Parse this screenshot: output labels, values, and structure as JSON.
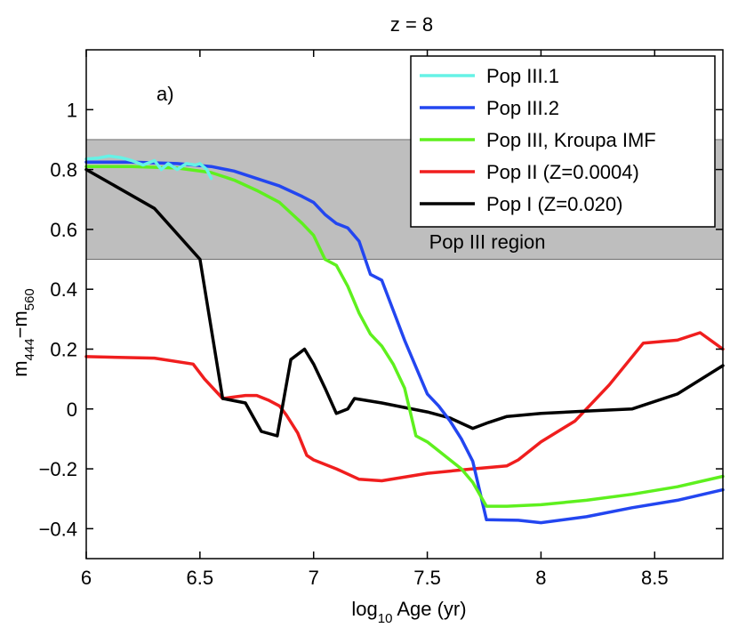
{
  "chart_data": {
    "type": "line",
    "title": "z = 8",
    "xlabel": "log",
    "xlabel_sub": "10",
    "xlabel_rest": " Age (yr)",
    "ylabel": "m",
    "ylabel_sub1": "444",
    "ylabel_mid": "−m",
    "ylabel_sub2": "560",
    "xlim": [
      6,
      8.8
    ],
    "ylim": [
      -0.5,
      1.2
    ],
    "xticks": [
      6,
      6.5,
      7,
      7.5,
      8,
      8.5
    ],
    "xtick_labels": [
      "6",
      "6.5",
      "7",
      "7.5",
      "8",
      "8.5"
    ],
    "yticks": [
      -0.4,
      -0.2,
      0,
      0.2,
      0.4,
      0.6,
      0.8,
      1
    ],
    "ytick_labels": [
      "−0.4",
      "−0.2",
      "0",
      "0.2",
      "0.4",
      "0.6",
      "0.8",
      "1"
    ],
    "panel_label": "a)",
    "band": {
      "label": "Pop III region",
      "y0": 0.5,
      "y1": 0.9,
      "color": "#bebebe"
    },
    "legend_position": "top-right",
    "series": [
      {
        "name": "Pop III.1",
        "color": "#66f2e6",
        "x": [
          6.0,
          6.05,
          6.1,
          6.15,
          6.2,
          6.25,
          6.3,
          6.33,
          6.36,
          6.4,
          6.44,
          6.48,
          6.5,
          6.53,
          6.55
        ],
        "y": [
          0.835,
          0.838,
          0.845,
          0.84,
          0.83,
          0.815,
          0.83,
          0.8,
          0.82,
          0.8,
          0.82,
          0.815,
          0.82,
          0.8,
          0.77
        ]
      },
      {
        "name": "Pop III.2",
        "color": "#2346f0",
        "x": [
          6.0,
          6.2,
          6.4,
          6.55,
          6.65,
          6.75,
          6.85,
          6.95,
          7.0,
          7.05,
          7.1,
          7.15,
          7.2,
          7.25,
          7.3,
          7.35,
          7.4,
          7.45,
          7.5,
          7.55,
          7.6,
          7.65,
          7.7,
          7.76,
          7.9,
          8.0,
          8.2,
          8.4,
          8.6,
          8.8
        ],
        "y": [
          0.825,
          0.825,
          0.82,
          0.81,
          0.795,
          0.77,
          0.745,
          0.71,
          0.69,
          0.65,
          0.62,
          0.605,
          0.56,
          0.45,
          0.43,
          0.33,
          0.23,
          0.14,
          0.05,
          0.01,
          -0.04,
          -0.1,
          -0.175,
          -0.37,
          -0.372,
          -0.38,
          -0.36,
          -0.33,
          -0.305,
          -0.27
        ]
      },
      {
        "name": "Pop III, Kroupa IMF",
        "color": "#5ef01e",
        "x": [
          6.0,
          6.2,
          6.4,
          6.55,
          6.65,
          6.75,
          6.85,
          6.9,
          6.95,
          7.0,
          7.05,
          7.1,
          7.15,
          7.2,
          7.25,
          7.3,
          7.35,
          7.4,
          7.45,
          7.5,
          7.55,
          7.6,
          7.65,
          7.7,
          7.76,
          7.85,
          8.0,
          8.2,
          8.4,
          8.6,
          8.8
        ],
        "y": [
          0.81,
          0.81,
          0.805,
          0.79,
          0.765,
          0.73,
          0.69,
          0.655,
          0.62,
          0.58,
          0.5,
          0.48,
          0.41,
          0.32,
          0.25,
          0.21,
          0.15,
          0.07,
          -0.09,
          -0.11,
          -0.14,
          -0.17,
          -0.2,
          -0.245,
          -0.325,
          -0.325,
          -0.32,
          -0.305,
          -0.285,
          -0.26,
          -0.225
        ]
      },
      {
        "name": "Pop II (Z=0.0004)",
        "color": "#f01e1e",
        "x": [
          6.0,
          6.3,
          6.47,
          6.52,
          6.6,
          6.7,
          6.75,
          6.8,
          6.85,
          6.88,
          6.93,
          6.97,
          7.0,
          7.1,
          7.2,
          7.3,
          7.5,
          7.7,
          7.85,
          7.9,
          8.0,
          8.15,
          8.3,
          8.45,
          8.6,
          8.7,
          8.8
        ],
        "y": [
          0.175,
          0.17,
          0.15,
          0.1,
          0.035,
          0.045,
          0.045,
          0.03,
          0.01,
          -0.02,
          -0.08,
          -0.155,
          -0.17,
          -0.2,
          -0.235,
          -0.24,
          -0.215,
          -0.2,
          -0.19,
          -0.17,
          -0.11,
          -0.04,
          0.08,
          0.22,
          0.23,
          0.255,
          0.2
        ]
      },
      {
        "name": "Pop I (Z=0.020)",
        "color": "#000000",
        "x": [
          6.0,
          6.3,
          6.5,
          6.6,
          6.7,
          6.77,
          6.84,
          6.9,
          6.96,
          7.0,
          7.05,
          7.1,
          7.15,
          7.18,
          7.3,
          7.4,
          7.5,
          7.6,
          7.7,
          7.77,
          7.85,
          8.0,
          8.2,
          8.4,
          8.6,
          8.8
        ],
        "y": [
          0.8,
          0.67,
          0.5,
          0.035,
          0.02,
          -0.075,
          -0.09,
          0.165,
          0.2,
          0.15,
          0.07,
          -0.015,
          0.0,
          0.035,
          0.02,
          0.005,
          -0.01,
          -0.03,
          -0.065,
          -0.045,
          -0.025,
          -0.015,
          -0.007,
          0.0,
          0.05,
          0.145
        ]
      }
    ]
  }
}
